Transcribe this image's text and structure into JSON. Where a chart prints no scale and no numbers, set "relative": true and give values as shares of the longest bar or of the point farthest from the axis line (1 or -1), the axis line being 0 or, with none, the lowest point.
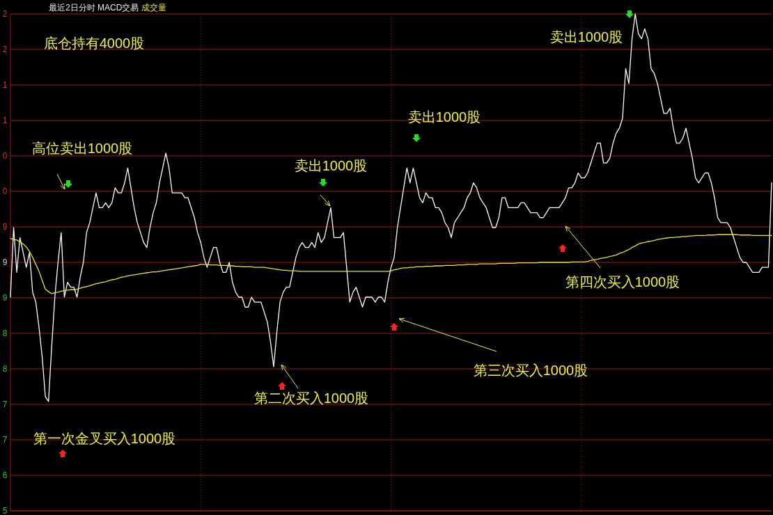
{
  "chart_data": {
    "type": "line",
    "title": "最近2日分时 MACD交易",
    "subtitle": "成交量",
    "relative": true,
    "grid": "x",
    "ref_lines": [
      {
        "axis": "y",
        "value": 1,
        "color": "#a01818"
      },
      {
        "axis": "y",
        "value": 0.9286,
        "color": "#a01818"
      },
      {
        "axis": "y",
        "value": 0.8571,
        "color": "#a01818"
      },
      {
        "axis": "y",
        "value": 0.7857,
        "color": "#a01818"
      },
      {
        "axis": "y",
        "value": 0.7143,
        "color": "#a01818"
      },
      {
        "axis": "y",
        "value": 0.6429,
        "color": "#a01818"
      },
      {
        "axis": "y",
        "value": 0.5714,
        "color": "#a01818"
      },
      {
        "axis": "y",
        "value": 0.5,
        "color": "#a01818"
      },
      {
        "axis": "y",
        "value": 0.4286,
        "color": "#a01818"
      },
      {
        "axis": "y",
        "value": 0.3571,
        "color": "#a01818"
      },
      {
        "axis": "y",
        "value": 0.2857,
        "color": "#a01818"
      },
      {
        "axis": "y",
        "value": 0.2143,
        "color": "#a01818"
      },
      {
        "axis": "y",
        "value": 0.1429,
        "color": "#a01818"
      },
      {
        "axis": "y",
        "value": 0.0714,
        "color": "#a01818"
      },
      {
        "axis": "y",
        "value": 0,
        "color": "#a01818"
      }
    ],
    "marker": "none",
    "line_style": "solid",
    "categories": [
      null,
      null,
      null,
      null,
      null,
      null,
      null,
      null,
      null,
      null,
      null,
      null,
      null,
      null,
      null,
      null,
      null,
      null,
      null,
      null,
      null,
      null,
      null,
      null,
      null,
      null,
      null,
      null,
      null,
      null,
      null,
      null,
      null,
      null,
      null,
      null,
      null,
      null,
      null,
      null,
      null,
      null,
      null,
      null,
      null,
      null,
      null,
      null,
      null,
      null,
      null,
      null,
      null,
      null,
      null,
      null,
      null,
      null,
      null,
      null,
      null,
      null,
      null,
      null,
      null,
      null,
      null,
      null,
      null,
      null,
      null,
      null,
      null,
      null,
      null,
      null,
      null,
      null,
      null,
      null,
      null,
      null,
      null,
      null,
      null,
      null,
      null,
      null,
      null,
      null,
      null,
      null,
      null,
      null,
      null,
      null,
      null,
      null,
      null,
      null,
      null,
      null,
      null,
      null,
      null,
      null,
      null,
      null,
      null,
      null,
      null,
      null,
      null,
      null,
      null,
      null,
      null,
      null,
      null,
      null,
      null,
      null,
      null,
      null,
      null,
      null,
      null,
      null,
      null,
      null,
      null,
      null,
      null,
      null,
      null,
      null,
      null,
      null,
      null,
      null,
      null,
      null,
      null,
      null,
      null,
      null,
      null,
      null,
      null,
      null,
      null,
      null,
      null,
      null,
      null,
      null,
      null,
      null,
      null,
      null,
      null,
      null,
      null,
      null,
      null,
      null,
      null,
      null,
      null,
      null,
      null,
      null,
      null,
      null,
      null,
      null,
      null,
      null,
      null,
      null,
      null,
      null,
      null,
      null,
      null,
      null,
      null,
      null,
      null,
      null,
      null,
      null,
      null,
      null,
      null,
      null,
      null,
      null,
      null,
      null,
      null,
      null,
      null,
      null,
      null,
      null,
      null,
      null,
      null,
      null,
      null,
      null,
      null,
      null,
      null,
      null,
      null,
      null,
      null,
      null,
      null,
      null,
      null,
      null,
      null,
      null,
      null,
      null,
      null,
      null,
      null,
      null,
      null,
      null,
      null,
      null,
      null,
      null,
      null,
      null,
      null
    ],
    "series": [
      {
        "color": "#ffffff",
        "values": [
          0.43,
          0.57,
          0.48,
          0.55,
          0.52,
          0.49,
          0.52,
          0.44,
          0.42,
          0.37,
          0.31,
          0.23,
          0.22,
          0.33,
          0.43,
          0.5,
          0.56,
          0.43,
          0.46,
          0.45,
          0.45,
          0.43,
          0.47,
          0.5,
          0.56,
          0.58,
          0.61,
          0.64,
          0.61,
          0.61,
          0.62,
          0.61,
          0.62,
          0.65,
          0.64,
          0.64,
          0.66,
          0.69,
          0.65,
          0.61,
          0.58,
          0.56,
          0.54,
          0.53,
          0.57,
          0.6,
          0.62,
          0.66,
          0.69,
          0.72,
          0.69,
          0.64,
          0.64,
          0.64,
          0.64,
          0.63,
          0.63,
          0.61,
          0.59,
          0.56,
          0.54,
          0.51,
          0.49,
          0.51,
          0.53,
          0.53,
          0.5,
          0.48,
          0.48,
          0.5,
          0.46,
          0.44,
          0.43,
          0.43,
          0.41,
          0.41,
          0.43,
          0.42,
          0.42,
          0.42,
          0.4,
          0.38,
          0.34,
          0.29,
          0.36,
          0.42,
          0.44,
          0.45,
          0.45,
          0.48,
          0.51,
          0.53,
          0.54,
          0.53,
          0.53,
          0.54,
          0.53,
          0.56,
          0.54,
          0.55,
          0.58,
          0.61,
          0.55,
          0.55,
          0.55,
          0.56,
          0.49,
          0.42,
          0.44,
          0.45,
          0.43,
          0.41,
          0.43,
          0.43,
          0.43,
          0.42,
          0.43,
          0.43,
          0.42,
          0.46,
          0.49,
          0.51,
          0.57,
          0.61,
          0.65,
          0.69,
          0.66,
          0.69,
          0.66,
          0.63,
          0.62,
          0.64,
          0.63,
          0.63,
          0.61,
          0.61,
          0.6,
          0.58,
          0.57,
          0.55,
          0.58,
          0.59,
          0.6,
          0.61,
          0.63,
          0.64,
          0.66,
          0.65,
          0.63,
          0.62,
          0.61,
          0.59,
          0.57,
          0.57,
          0.59,
          0.63,
          0.63,
          0.61,
          0.61,
          0.61,
          0.61,
          0.62,
          0.62,
          0.61,
          0.6,
          0.6,
          0.6,
          0.59,
          0.59,
          0.6,
          0.61,
          0.61,
          0.61,
          0.61,
          0.62,
          0.63,
          0.65,
          0.65,
          0.66,
          0.68,
          0.67,
          0.67,
          0.68,
          0.7,
          0.72,
          0.74,
          0.74,
          0.7,
          0.7,
          0.71,
          0.74,
          0.76,
          0.77,
          0.79,
          0.89,
          0.86,
          0.95,
          1,
          0.96,
          0.95,
          0.97,
          0.95,
          0.89,
          0.88,
          0.86,
          0.83,
          0.8,
          0.8,
          0.81,
          0.77,
          0.74,
          0.74,
          0.75,
          0.77,
          0.74,
          0.71,
          0.67,
          0.66,
          0.67,
          0.68,
          0.68,
          0.66,
          0.63,
          0.59,
          0.58,
          0.58,
          0.58,
          0.57,
          0.55,
          0.53,
          0.51,
          0.5,
          0.5,
          0.49,
          0.48,
          0.48,
          0.48,
          0.49,
          0.49,
          0.49,
          0.66
        ]
      },
      {
        "color": "#e6e62e",
        "values": [
          0.548,
          0.546,
          0.545,
          0.541,
          0.537,
          0.531,
          0.522,
          0.51,
          0.496,
          0.482,
          0.464,
          0.446,
          0.441,
          0.437,
          0.439,
          0.44,
          0.442,
          0.443,
          0.444,
          0.445,
          0.445,
          0.446,
          0.448,
          0.45,
          0.451,
          0.453,
          0.455,
          0.457,
          0.458,
          0.46,
          0.461,
          0.463,
          0.465,
          0.466,
          0.468,
          0.47,
          0.471,
          0.473,
          0.474,
          0.475,
          0.476,
          0.477,
          0.478,
          0.479,
          0.48,
          0.481,
          0.481,
          0.482,
          0.483,
          0.484,
          0.485,
          0.486,
          0.487,
          0.488,
          0.489,
          0.49,
          0.491,
          0.492,
          0.493,
          0.494,
          0.496,
          0.496,
          0.496,
          0.495,
          0.495,
          0.495,
          0.494,
          0.494,
          0.494,
          0.493,
          0.493,
          0.492,
          0.492,
          0.491,
          0.491,
          0.491,
          0.491,
          0.49,
          0.49,
          0.49,
          0.49,
          0.489,
          0.488,
          0.487,
          0.486,
          0.485,
          0.484,
          0.484,
          0.483,
          0.483,
          0.483,
          0.482,
          0.482,
          0.482,
          0.482,
          0.482,
          0.482,
          0.482,
          0.482,
          0.482,
          0.482,
          0.482,
          0.482,
          0.482,
          0.482,
          0.482,
          0.482,
          0.482,
          0.482,
          0.482,
          0.482,
          0.482,
          0.482,
          0.482,
          0.482,
          0.482,
          0.482,
          0.482,
          0.482,
          0.482,
          0.483,
          0.485,
          0.486,
          0.488,
          0.489,
          0.489,
          0.49,
          0.49,
          0.491,
          0.491,
          0.491,
          0.492,
          0.492,
          0.492,
          0.493,
          0.493,
          0.493,
          0.494,
          0.494,
          0.494,
          0.494,
          0.495,
          0.495,
          0.495,
          0.496,
          0.496,
          0.496,
          0.496,
          0.497,
          0.497,
          0.497,
          0.497,
          0.497,
          0.497,
          0.498,
          0.498,
          0.498,
          0.498,
          0.498,
          0.498,
          0.499,
          0.499,
          0.499,
          0.499,
          0.499,
          0.499,
          0.499,
          0.5,
          0.5,
          0.5,
          0.5,
          0.5,
          0.5,
          0.5,
          0.5,
          0.5,
          0.5,
          0.501,
          0.501,
          0.501,
          0.501,
          0.501,
          0.502,
          0.504,
          0.505,
          0.506,
          0.508,
          0.509,
          0.51,
          0.512,
          0.513,
          0.515,
          0.518,
          0.52,
          0.523,
          0.526,
          0.53,
          0.533,
          0.537,
          0.539,
          0.54,
          0.542,
          0.543,
          0.544,
          0.546,
          0.547,
          0.548,
          0.549,
          0.55,
          0.55,
          0.551,
          0.551,
          0.552,
          0.552,
          0.553,
          0.553,
          0.554,
          0.554,
          0.554,
          0.554,
          0.555,
          0.555,
          0.555,
          0.556,
          0.556,
          0.556,
          0.556,
          0.556,
          0.556,
          0.556,
          0.555,
          0.555,
          0.555,
          0.555,
          0.554,
          0.554,
          0.554,
          0.554,
          0.554,
          0.554,
          0.554
        ]
      }
    ],
    "annotations": [
      "底仓持有4000股",
      "高位卖出1000股",
      "第一次金叉买入1000股",
      "卖出1000股",
      "第二次买入1000股",
      "卖出1000股",
      "第三次买入1000股",
      "第四次买入1000股",
      "卖出1000股",
      "2",
      "2",
      "1",
      "1",
      "0",
      "0",
      "9",
      "9",
      "9",
      "8",
      "8",
      "7",
      "7",
      "6",
      "5"
    ]
  }
}
